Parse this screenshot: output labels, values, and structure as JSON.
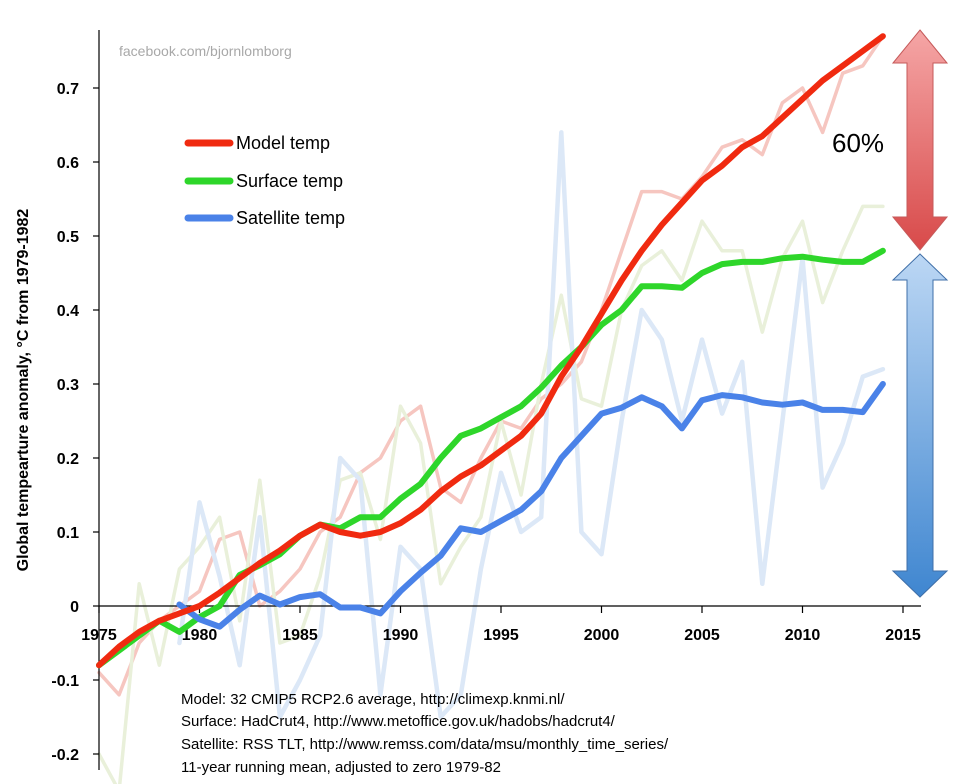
{
  "watermark": "facebook.com/bjornlomborg",
  "percent_label": "60%",
  "colors": {
    "model": "#f02a10",
    "surface": "#2ed62a",
    "satellite": "#4a82e8",
    "model_annual": "#f6c6c0",
    "surface_annual": "#e9f0da",
    "satellite_annual": "#dce8f7",
    "arrow_red_top": "#f5a6a6",
    "arrow_red_bottom": "#d84a4a",
    "arrow_blue_top": "#bcd7f4",
    "arrow_blue_bottom": "#3f86d0"
  },
  "notes": [
    "Model: 32 CMIP5 RCP2.6 average, http://climexp.knmi.nl/",
    "Surface: HadCrut4, http://www.metoffice.gov.uk/hadobs/hadcrut4/",
    "Satellite: RSS TLT, http://www.remss.com/data/msu/monthly_time_series/",
    "11-year running mean, adjusted to zero 1979-82"
  ],
  "chart_data": {
    "type": "line",
    "title": "",
    "xlabel": "",
    "ylabel": "Global tempearture anomaly, °C from 1979-1982",
    "xlim": [
      1975,
      2015
    ],
    "ylim": [
      -0.2,
      0.75
    ],
    "xticks": [
      1975,
      1980,
      1985,
      1990,
      1995,
      2000,
      2005,
      2010,
      2015
    ],
    "yticks": [
      -0.2,
      -0.1,
      0,
      0.1,
      0.2,
      0.3,
      0.4,
      0.5,
      0.6,
      0.7
    ],
    "ytick_labels": [
      "-0.2",
      "-0.1",
      "0",
      "0.1",
      "0.2",
      "0.3",
      "0.4",
      "0.5",
      "0.6",
      "0.7"
    ],
    "legend_position": "top-left",
    "grid": false,
    "series": [
      {
        "name": "Model temp",
        "x": [
          1975,
          1976,
          1977,
          1978,
          1979,
          1980,
          1981,
          1982,
          1983,
          1984,
          1985,
          1986,
          1987,
          1988,
          1989,
          1990,
          1991,
          1992,
          1993,
          1994,
          1995,
          1996,
          1997,
          1998,
          1999,
          2000,
          2001,
          2002,
          2003,
          2004,
          2005,
          2006,
          2007,
          2008,
          2009,
          2010,
          2011,
          2012,
          2013,
          2014
        ],
        "values": [
          -0.08,
          -0.055,
          -0.035,
          -0.02,
          -0.01,
          0.0,
          0.018,
          0.038,
          0.058,
          0.075,
          0.095,
          0.11,
          0.1,
          0.095,
          0.1,
          0.112,
          0.13,
          0.155,
          0.175,
          0.19,
          0.21,
          0.23,
          0.26,
          0.31,
          0.35,
          0.395,
          0.44,
          0.48,
          0.515,
          0.545,
          0.575,
          0.595,
          0.62,
          0.635,
          0.66,
          0.685,
          0.71,
          0.73,
          0.75,
          0.77
        ]
      },
      {
        "name": "Surface temp",
        "x": [
          1975,
          1976,
          1977,
          1978,
          1979,
          1980,
          1981,
          1982,
          1983,
          1984,
          1985,
          1986,
          1987,
          1988,
          1989,
          1990,
          1991,
          1992,
          1993,
          1994,
          1995,
          1996,
          1997,
          1998,
          1999,
          2000,
          2001,
          2002,
          2003,
          2004,
          2005,
          2006,
          2007,
          2008,
          2009,
          2010,
          2011,
          2012,
          2013,
          2014
        ],
        "values": [
          -0.08,
          -0.06,
          -0.04,
          -0.02,
          -0.035,
          -0.015,
          0.0,
          0.042,
          0.055,
          0.07,
          0.095,
          0.11,
          0.105,
          0.12,
          0.12,
          0.145,
          0.165,
          0.2,
          0.23,
          0.24,
          0.255,
          0.27,
          0.295,
          0.325,
          0.35,
          0.38,
          0.4,
          0.432,
          0.432,
          0.43,
          0.45,
          0.462,
          0.465,
          0.465,
          0.47,
          0.472,
          0.468,
          0.465,
          0.465,
          0.48
        ]
      },
      {
        "name": "Satellite temp",
        "x": [
          1979,
          1980,
          1981,
          1982,
          1983,
          1984,
          1985,
          1986,
          1987,
          1988,
          1989,
          1990,
          1991,
          1992,
          1993,
          1994,
          1995,
          1996,
          1997,
          1998,
          1999,
          2000,
          2001,
          2002,
          2003,
          2004,
          2005,
          2006,
          2007,
          2008,
          2009,
          2010,
          2011,
          2012,
          2013,
          2014
        ],
        "values": [
          0.002,
          -0.018,
          -0.028,
          -0.005,
          0.014,
          0.002,
          0.012,
          0.016,
          -0.002,
          -0.002,
          -0.01,
          0.02,
          0.045,
          0.068,
          0.105,
          0.1,
          0.115,
          0.13,
          0.155,
          0.2,
          0.23,
          0.26,
          0.268,
          0.282,
          0.27,
          0.24,
          0.278,
          0.285,
          0.282,
          0.275,
          0.272,
          0.275,
          0.265,
          0.265,
          0.262,
          0.3
        ]
      },
      {
        "name": "",
        "x": [
          1975,
          1976,
          1977,
          1978,
          1979,
          1980,
          1981,
          1982,
          1983,
          1984,
          1985,
          1986,
          1987,
          1988,
          1989,
          1990,
          1991,
          1992,
          1993,
          1994,
          1995,
          1996,
          1997,
          1998,
          1999,
          2000,
          2001,
          2002,
          2003,
          2004,
          2005,
          2006,
          2007,
          2008,
          2009,
          2010,
          2011,
          2012,
          2013,
          2014
        ],
        "values": [
          -0.09,
          -0.12,
          -0.05,
          -0.02,
          0.0,
          0.02,
          0.09,
          0.1,
          0.0,
          0.02,
          0.05,
          0.1,
          0.12,
          0.18,
          0.2,
          0.25,
          0.27,
          0.16,
          0.14,
          0.2,
          0.25,
          0.24,
          0.28,
          0.3,
          0.33,
          0.4,
          0.48,
          0.56,
          0.56,
          0.55,
          0.58,
          0.62,
          0.63,
          0.61,
          0.68,
          0.7,
          0.64,
          0.72,
          0.73,
          0.77
        ]
      },
      {
        "name": "",
        "x": [
          1975,
          1976,
          1977,
          1978,
          1979,
          1980,
          1981,
          1982,
          1983,
          1984,
          1985,
          1986,
          1987,
          1988,
          1989,
          1990,
          1991,
          1992,
          1993,
          1994,
          1995,
          1996,
          1997,
          1998,
          1999,
          2000,
          2001,
          2002,
          2003,
          2004,
          2005,
          2006,
          2007,
          2008,
          2009,
          2010,
          2011,
          2012,
          2013,
          2014
        ],
        "values": [
          -0.2,
          -0.25,
          0.03,
          -0.08,
          0.05,
          0.08,
          0.12,
          -0.02,
          0.17,
          -0.05,
          -0.04,
          0.04,
          0.17,
          0.18,
          0.09,
          0.27,
          0.22,
          0.03,
          0.08,
          0.12,
          0.25,
          0.15,
          0.3,
          0.42,
          0.28,
          0.27,
          0.4,
          0.46,
          0.48,
          0.44,
          0.52,
          0.48,
          0.48,
          0.37,
          0.47,
          0.52,
          0.41,
          0.48,
          0.54,
          0.54
        ]
      },
      {
        "name": "",
        "x": [
          1979,
          1980,
          1981,
          1982,
          1983,
          1984,
          1985,
          1986,
          1987,
          1988,
          1989,
          1990,
          1991,
          1992,
          1993,
          1994,
          1995,
          1996,
          1997,
          1998,
          1999,
          2000,
          2001,
          2002,
          2003,
          2004,
          2005,
          2006,
          2007,
          2008,
          2009,
          2010,
          2011,
          2012,
          2013,
          2014
        ],
        "values": [
          -0.05,
          0.14,
          0.04,
          -0.08,
          0.12,
          -0.15,
          -0.1,
          -0.04,
          0.2,
          0.17,
          -0.12,
          0.08,
          0.05,
          -0.15,
          -0.12,
          0.05,
          0.18,
          0.1,
          0.12,
          0.64,
          0.1,
          0.07,
          0.25,
          0.4,
          0.36,
          0.25,
          0.36,
          0.26,
          0.33,
          0.03,
          0.25,
          0.47,
          0.16,
          0.22,
          0.31,
          0.32
        ]
      }
    ]
  }
}
